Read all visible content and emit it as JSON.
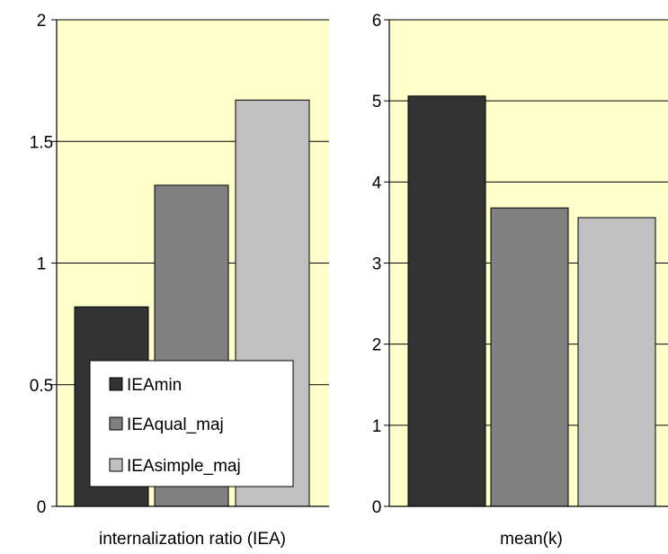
{
  "chart_data": [
    {
      "type": "bar",
      "categories": [
        "internalization ratio (IEA)"
      ],
      "series": [
        {
          "name": "IEAmin",
          "values": [
            0.82
          ]
        },
        {
          "name": "IEAqual_maj",
          "values": [
            1.32
          ]
        },
        {
          "name": "IEAsimple_maj",
          "values": [
            1.67
          ]
        }
      ],
      "xlabel": "internalization ratio (IEA)",
      "ylim": [
        0,
        2
      ],
      "yticks": [
        0,
        0.5,
        1,
        1.5,
        2
      ],
      "yticklabels": [
        "0",
        "0.5",
        "1",
        "1.5",
        "2"
      ],
      "grid": true,
      "legend": "inside-lower-right",
      "plot_background": "#ffffcc",
      "colors": [
        "#333333",
        "#808080",
        "#c0c0c0"
      ]
    },
    {
      "type": "bar",
      "categories": [
        "mean(k)"
      ],
      "series": [
        {
          "name": "IEAmin",
          "values": [
            5.06
          ]
        },
        {
          "name": "IEAqual_maj",
          "values": [
            3.68
          ]
        },
        {
          "name": "IEAsimple_maj",
          "values": [
            3.56
          ]
        }
      ],
      "xlabel": "mean(k)",
      "ylim": [
        0,
        6
      ],
      "yticks": [
        0,
        1,
        2,
        3,
        4,
        5,
        6
      ],
      "yticklabels": [
        "0",
        "1",
        "2",
        "3",
        "4",
        "5",
        "6"
      ],
      "grid": true,
      "plot_background": "#ffffcc",
      "colors": [
        "#333333",
        "#808080",
        "#c0c0c0"
      ]
    }
  ],
  "legend": {
    "items": [
      {
        "label": "IEAmin",
        "color": "#333333"
      },
      {
        "label": "IEAqual_maj",
        "color": "#808080"
      },
      {
        "label": "IEAsimple_maj",
        "color": "#c0c0c0"
      }
    ]
  }
}
